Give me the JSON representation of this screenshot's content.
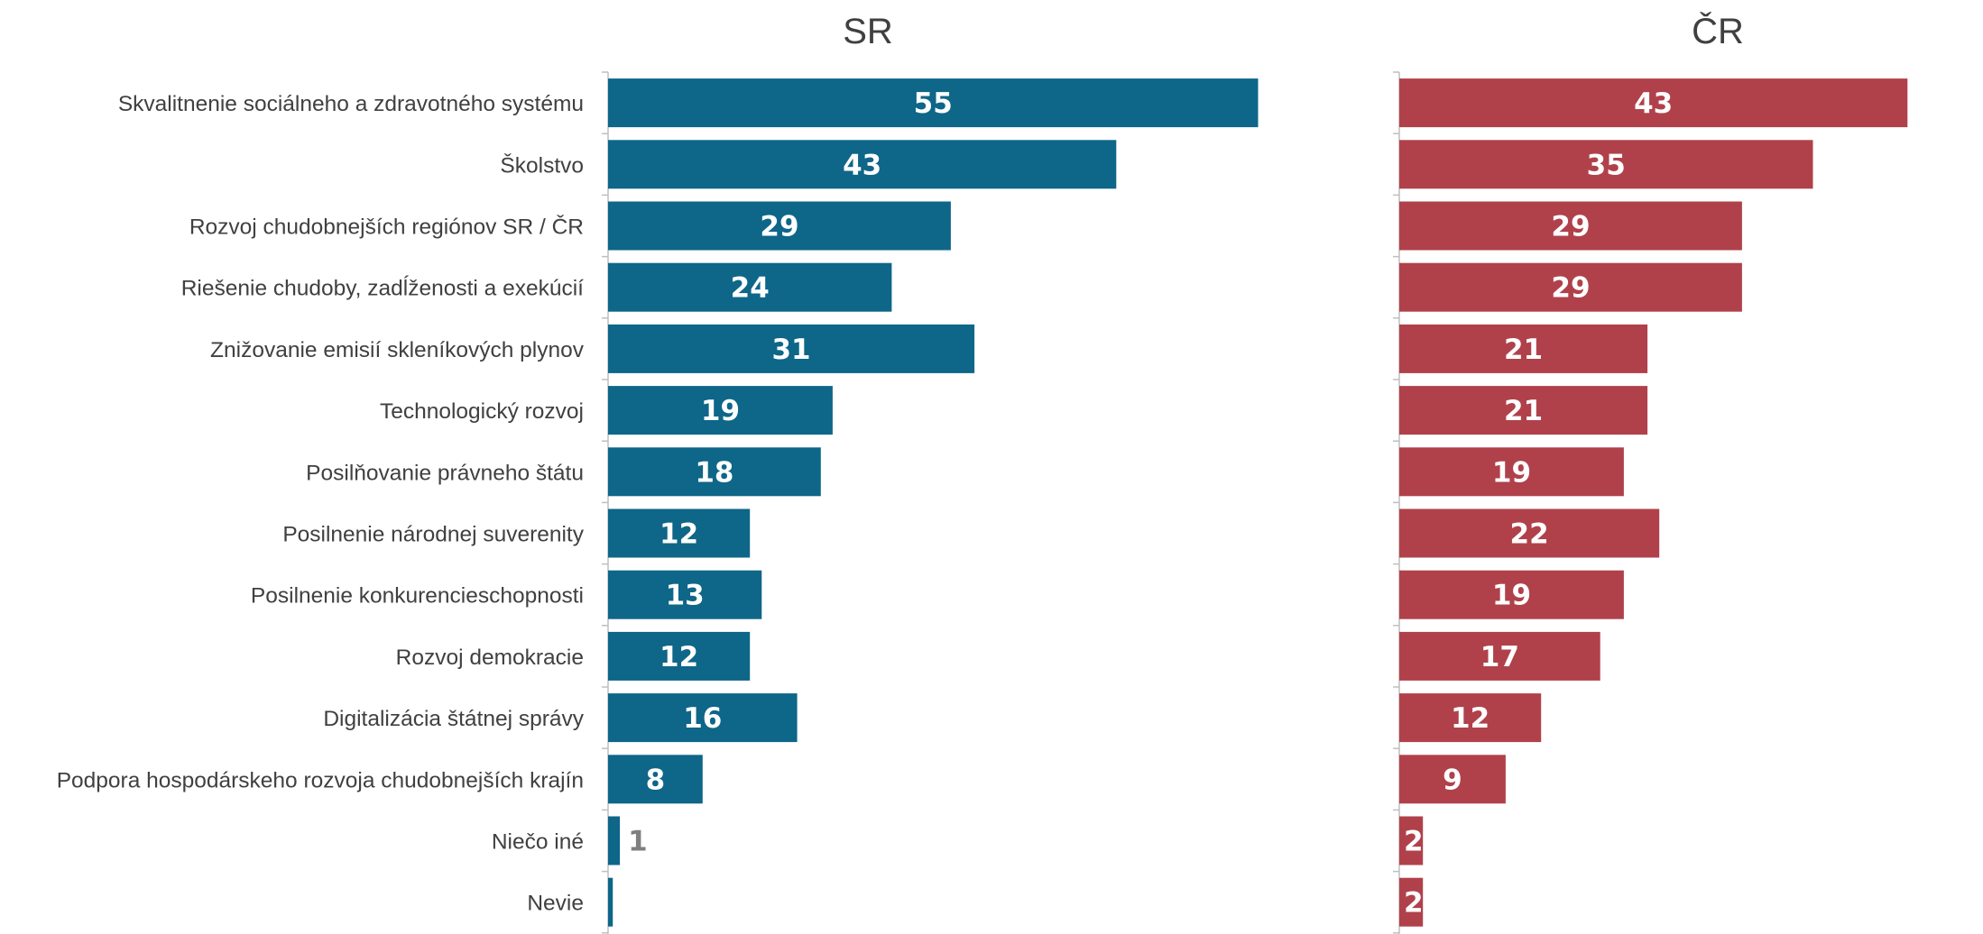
{
  "chart_data": {
    "type": "bar",
    "orientation": "horizontal",
    "categories": [
      "Skvalitnenie sociálneho a zdravotného systému",
      "Školstvo",
      "Rozvoj chudobnejších regiónov SR /  ČR",
      "Riešenie chudoby, zadĺženosti a exekúcií",
      "Znižovanie emisií skleníkových plynov",
      "Technologický rozvoj",
      "Posilňovanie právneho štátu",
      "Posilnenie národnej suverenity",
      "Posilnenie konkurencieschopnosti",
      "Rozvoj demokracie",
      "Digitalizácia štátnej správy",
      "Podpora hospodárskeho rozvoja chudobnejších krajín",
      "Niečo iné",
      "Nevie"
    ],
    "series": [
      {
        "name": "SR",
        "color": "#0e6688",
        "values": [
          55,
          43,
          29,
          24,
          31,
          19,
          18,
          12,
          13,
          12,
          16,
          8,
          1,
          0.4
        ],
        "labels": [
          "55",
          "43",
          "29",
          "24",
          "31",
          "19",
          "18",
          "12",
          "13",
          "12",
          "16",
          "8",
          "1",
          ""
        ]
      },
      {
        "name": "ČR",
        "color": "#b0414a",
        "values": [
          43,
          35,
          29,
          29,
          21,
          21,
          19,
          22,
          19,
          17,
          12,
          9,
          2,
          2
        ],
        "labels": [
          "43",
          "35",
          "29",
          "29",
          "21",
          "21",
          "19",
          "22",
          "19",
          "17",
          "12",
          "9",
          "2",
          "2"
        ]
      }
    ],
    "xlabel": "",
    "ylabel": "",
    "legend": "none",
    "grid": false
  }
}
